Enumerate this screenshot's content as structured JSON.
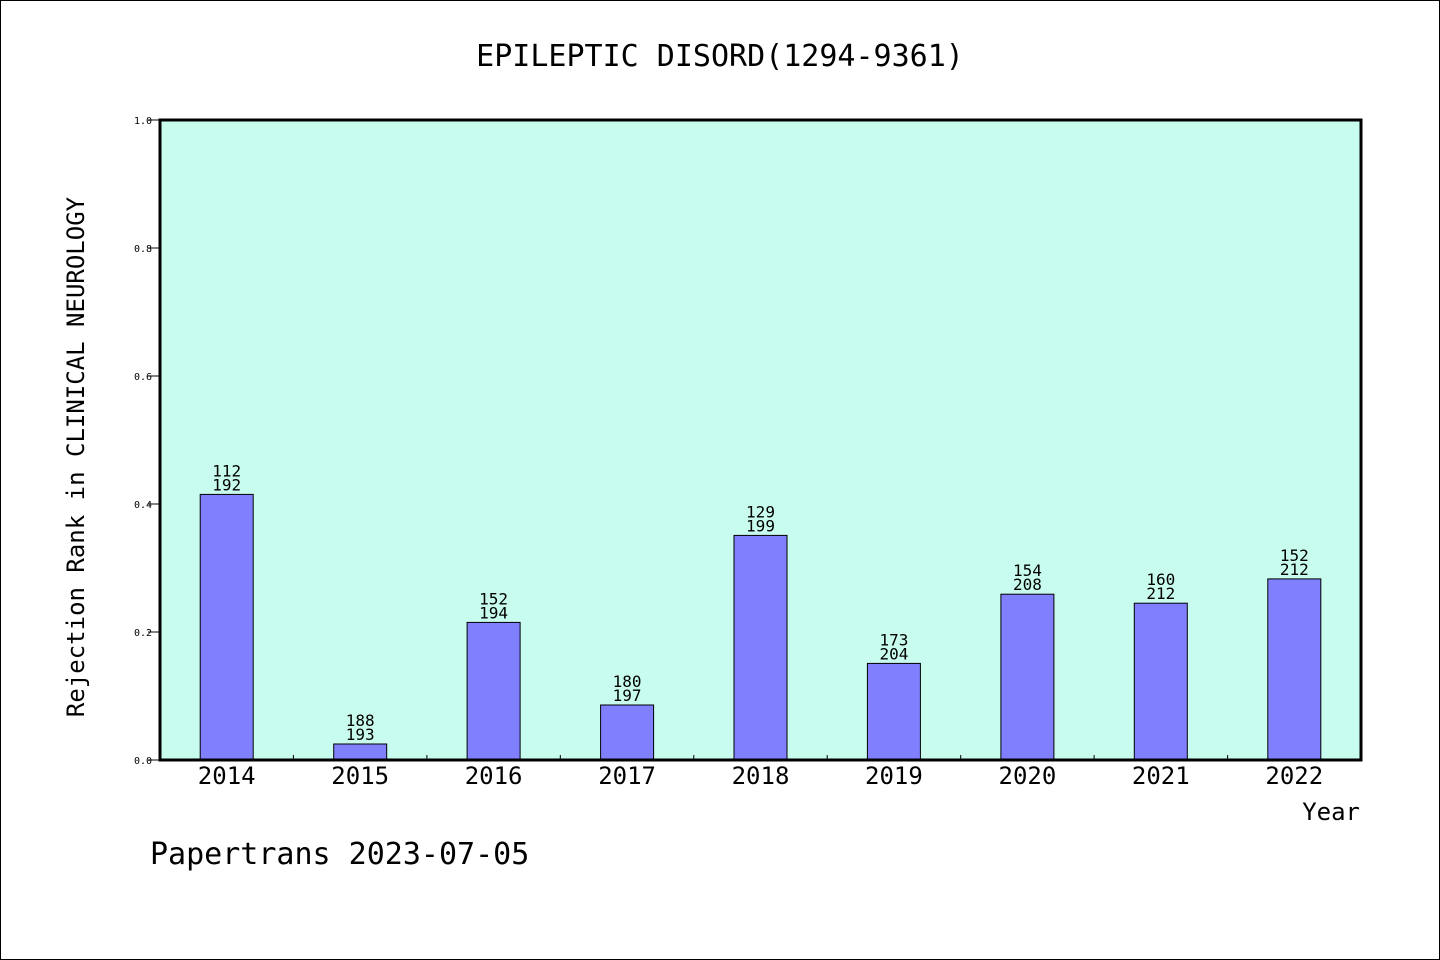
{
  "chart_data": {
    "type": "bar",
    "title": "EPILEPTIC DISORD(1294-9361)",
    "xlabel": "Year",
    "ylabel": "Rejection Rank in CLINICAL NEUROLOGY",
    "categories": [
      "2014",
      "2015",
      "2016",
      "2017",
      "2018",
      "2019",
      "2020",
      "2021",
      "2022"
    ],
    "values": [
      0.415,
      0.025,
      0.215,
      0.086,
      0.351,
      0.151,
      0.259,
      0.245,
      0.283
    ],
    "bar_labels": [
      [
        "112",
        "192"
      ],
      [
        "188",
        "193"
      ],
      [
        "152",
        "194"
      ],
      [
        "180",
        "197"
      ],
      [
        "129",
        "199"
      ],
      [
        "173",
        "204"
      ],
      [
        "154",
        "208"
      ],
      [
        "160",
        "212"
      ],
      [
        "152",
        "212"
      ]
    ],
    "ylim": [
      0,
      1.0
    ],
    "yticks": [
      "0.0",
      "0.2",
      "0.4",
      "0.6",
      "0.8",
      "1.0"
    ],
    "grid": false,
    "colors": {
      "plot_background": "#c8fcee",
      "bar_fill": "#8080ff",
      "bar_stroke": "#000000"
    }
  },
  "footer": {
    "text": "Papertrans 2023-07-05"
  }
}
